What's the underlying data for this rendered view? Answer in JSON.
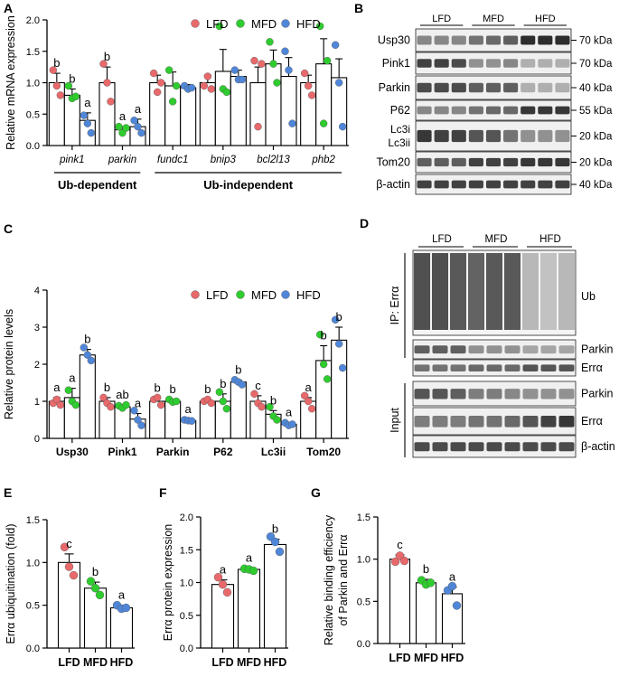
{
  "colors": {
    "LFD": "#e8696b",
    "MFD": "#2ecc2e",
    "HFD": "#4f86d8"
  },
  "panels": {
    "A": "A",
    "B": "B",
    "C": "C",
    "D": "D",
    "E": "E",
    "F": "F",
    "G": "G"
  },
  "chart_data": [
    {
      "id": "A",
      "type": "bar",
      "ylabel": "Relative mRNA expression",
      "ylim": [
        0,
        2.0
      ],
      "yticks": [
        "0.0",
        "0.5",
        "1.0",
        "1.5",
        "2.0"
      ],
      "legend": [
        "LFD",
        "MFD",
        "HFD"
      ],
      "categories": [
        "pink1",
        "parkin",
        "fundc1",
        "bnip3",
        "bcl2l13",
        "phb2"
      ],
      "groups": [
        "Ub-dependent",
        "Ub-independent"
      ],
      "series": [
        {
          "name": "LFD",
          "values": [
            1.0,
            1.0,
            1.0,
            1.0,
            1.0,
            1.0
          ],
          "err": [
            0.15,
            0.25,
            0.12,
            0.12,
            0.25,
            0.12
          ],
          "letters": [
            "b",
            "b",
            "",
            "",
            "",
            ""
          ],
          "points": [
            [
              1.2,
              0.95,
              0.8
            ],
            [
              1.3,
              1.0,
              0.7
            ],
            [
              1.15,
              0.85,
              1.0
            ],
            [
              0.95,
              1.1,
              0.9
            ],
            [
              1.35,
              0.3,
              1.3
            ],
            [
              1.15,
              0.95,
              0.8
            ]
          ]
        },
        {
          "name": "MFD",
          "values": [
            0.8,
            0.25,
            0.95,
            1.18,
            1.3,
            1.3
          ],
          "err": [
            0.1,
            0.05,
            0.22,
            0.35,
            0.22,
            0.4
          ],
          "letters": [
            "b",
            "a",
            "",
            "",
            "",
            ""
          ],
          "points": [
            [
              0.95,
              0.75,
              0.78
            ],
            [
              0.3,
              0.2,
              0.28
            ],
            [
              1.2,
              0.7,
              0.95
            ],
            [
              1.9,
              0.9,
              0.85
            ],
            [
              1.65,
              1.3,
              1.0
            ],
            [
              1.9,
              0.35,
              1.35
            ]
          ]
        },
        {
          "name": "HFD",
          "values": [
            0.4,
            0.3,
            0.92,
            1.1,
            1.1,
            1.08
          ],
          "err": [
            0.12,
            0.12,
            0.05,
            0.1,
            0.3,
            0.3
          ],
          "letters": [
            "a",
            "a",
            "",
            "",
            "",
            ""
          ],
          "points": [
            [
              0.48,
              0.35,
              0.2
            ],
            [
              0.4,
              0.3,
              0.2
            ],
            [
              0.95,
              0.9,
              0.92
            ],
            [
              1.2,
              1.05,
              1.05
            ],
            [
              1.5,
              1.2,
              0.35
            ],
            [
              1.6,
              1.0,
              0.3
            ]
          ]
        }
      ]
    },
    {
      "id": "C",
      "type": "bar",
      "ylabel": "Relative protein levels",
      "ylim": [
        0,
        4
      ],
      "yticks": [
        "0",
        "1",
        "2",
        "3",
        "4"
      ],
      "legend": [
        "LFD",
        "MFD",
        "HFD"
      ],
      "categories": [
        "Usp30",
        "Pink1",
        "Parkin",
        "P62",
        "Lc3ii",
        "Tom20"
      ],
      "series": [
        {
          "name": "LFD",
          "values": [
            1.0,
            1.0,
            1.0,
            1.0,
            1.0,
            1.0
          ],
          "err": [
            0.1,
            0.1,
            0.08,
            0.05,
            0.15,
            0.1
          ],
          "letters": [
            "a",
            "b",
            "b",
            "b",
            "c",
            "a"
          ],
          "points": [
            [
              0.95,
              1.05,
              0.9
            ],
            [
              1.1,
              0.95,
              0.85
            ],
            [
              1.05,
              1.1,
              0.9
            ],
            [
              1.0,
              1.05,
              0.95
            ],
            [
              1.2,
              0.95,
              0.85
            ],
            [
              1.15,
              1.0,
              0.8
            ]
          ]
        },
        {
          "name": "MFD",
          "values": [
            1.1,
            0.85,
            1.0,
            1.0,
            0.65,
            2.1
          ],
          "err": [
            0.25,
            0.05,
            0.05,
            0.2,
            0.1,
            0.4
          ],
          "letters": [
            "a",
            "ab",
            "b",
            "b",
            "b",
            "b"
          ],
          "points": [
            [
              1.3,
              1.0,
              0.9
            ],
            [
              0.88,
              0.82,
              0.9
            ],
            [
              1.05,
              0.98,
              1.0
            ],
            [
              1.25,
              1.0,
              0.8
            ],
            [
              0.85,
              0.6,
              0.5
            ],
            [
              2.8,
              2.0,
              1.6
            ]
          ]
        },
        {
          "name": "HFD",
          "values": [
            2.25,
            0.52,
            0.48,
            1.52,
            0.38,
            2.65
          ],
          "err": [
            0.15,
            0.15,
            0.03,
            0.05,
            0.05,
            0.35
          ],
          "letters": [
            "b",
            "a",
            "a",
            "b",
            "a",
            "b"
          ],
          "points": [
            [
              2.45,
              2.25,
              2.1
            ],
            [
              0.75,
              0.5,
              0.35
            ],
            [
              0.5,
              0.48,
              0.47
            ],
            [
              1.58,
              1.52,
              1.45
            ],
            [
              0.42,
              0.35,
              0.38
            ],
            [
              3.2,
              2.55,
              1.9
            ]
          ]
        }
      ]
    },
    {
      "id": "E",
      "type": "bar",
      "ylabel": "Errα  ubiquitination (fold)",
      "ylim": [
        0,
        1.5
      ],
      "yticks": [
        "0.0",
        "0.5",
        "1.0",
        "1.5"
      ],
      "categories": [
        "LFD",
        "MFD",
        "HFD"
      ],
      "values": [
        1.0,
        0.7,
        0.47
      ],
      "err": [
        0.1,
        0.07,
        0.03
      ],
      "letters": [
        "c",
        "b",
        "a"
      ],
      "points": [
        [
          1.18,
          0.95,
          0.85
        ],
        [
          0.78,
          0.7,
          0.62
        ],
        [
          0.5,
          0.46,
          0.47
        ]
      ]
    },
    {
      "id": "F",
      "type": "bar",
      "ylabel": "Errα protein expression",
      "ylim": [
        0,
        2.0
      ],
      "yticks": [
        "0.0",
        "0.5",
        "1.0",
        "1.5",
        "2.0"
      ],
      "categories": [
        "LFD",
        "MFD",
        "HFD"
      ],
      "values": [
        0.97,
        1.2,
        1.58
      ],
      "err": [
        0.07,
        0.02,
        0.08
      ],
      "letters": [
        "a",
        "a",
        "b"
      ],
      "points": [
        [
          1.08,
          0.97,
          0.85
        ],
        [
          1.21,
          1.2,
          1.18
        ],
        [
          1.7,
          1.62,
          1.47
        ]
      ]
    },
    {
      "id": "G",
      "type": "bar",
      "ylabel": "Relative binding efficiency of Parkin and Errα",
      "ylabel_lines": [
        "Relative binding efficiency",
        "of Parkin and Errα"
      ],
      "ylim": [
        0,
        1.5
      ],
      "yticks": [
        "0.0",
        "0.5",
        "1.0",
        "1.5"
      ],
      "categories": [
        "LFD",
        "MFD",
        "HFD"
      ],
      "values": [
        1.0,
        0.72,
        0.59
      ],
      "err": [
        0.05,
        0.04,
        0.08
      ],
      "letters": [
        "c",
        "b",
        "a"
      ],
      "points": [
        [
          0.97,
          1.04,
          0.98
        ],
        [
          0.75,
          0.7,
          0.72
        ],
        [
          0.63,
          0.68,
          0.45
        ]
      ]
    }
  ],
  "chartA_groups": {
    "ub_dep": "Ub-dependent",
    "ub_indep": "Ub-independent"
  },
  "blotB": {
    "groups": [
      "LFD",
      "MFD",
      "HFD"
    ],
    "rows": [
      {
        "label": "Usp30",
        "kda": "70 kDa"
      },
      {
        "label": "Pink1",
        "kda": "70 kDa"
      },
      {
        "label": "Parkin",
        "kda": "40 kDa"
      },
      {
        "label": "P62",
        "kda": "55 kDa"
      },
      {
        "label": "Lc3i",
        "label2": "Lc3ii",
        "kda": "20 kDa"
      },
      {
        "label": "Tom20",
        "kda": "20 kDa"
      },
      {
        "label": "β-actin",
        "kda": "40 kDa"
      }
    ],
    "intensity": [
      [
        0.5,
        0.5,
        0.5,
        0.6,
        0.65,
        0.7,
        0.95,
        0.95,
        0.95
      ],
      [
        0.85,
        0.85,
        0.8,
        0.45,
        0.45,
        0.5,
        0.3,
        0.3,
        0.3
      ],
      [
        0.8,
        0.8,
        0.8,
        0.7,
        0.7,
        0.7,
        0.3,
        0.3,
        0.3
      ],
      [
        0.5,
        0.5,
        0.5,
        0.6,
        0.65,
        0.65,
        0.9,
        0.9,
        0.9
      ],
      [
        0.9,
        0.85,
        0.85,
        0.75,
        0.75,
        0.6,
        0.45,
        0.45,
        0.45
      ],
      [
        0.7,
        0.7,
        0.7,
        0.85,
        0.85,
        0.85,
        0.9,
        0.9,
        0.9
      ],
      [
        0.85,
        0.85,
        0.85,
        0.85,
        0.85,
        0.85,
        0.85,
        0.85,
        0.85
      ]
    ]
  },
  "blotD": {
    "groups": [
      "LFD",
      "MFD",
      "HFD"
    ],
    "ip_label": "IP: Errα",
    "input_label": "Input",
    "ub_label": "Ub",
    "ip_rows": [
      "Parkin",
      "Errα"
    ],
    "input_rows": [
      "Parkin",
      "Errα",
      "β-actin"
    ]
  }
}
